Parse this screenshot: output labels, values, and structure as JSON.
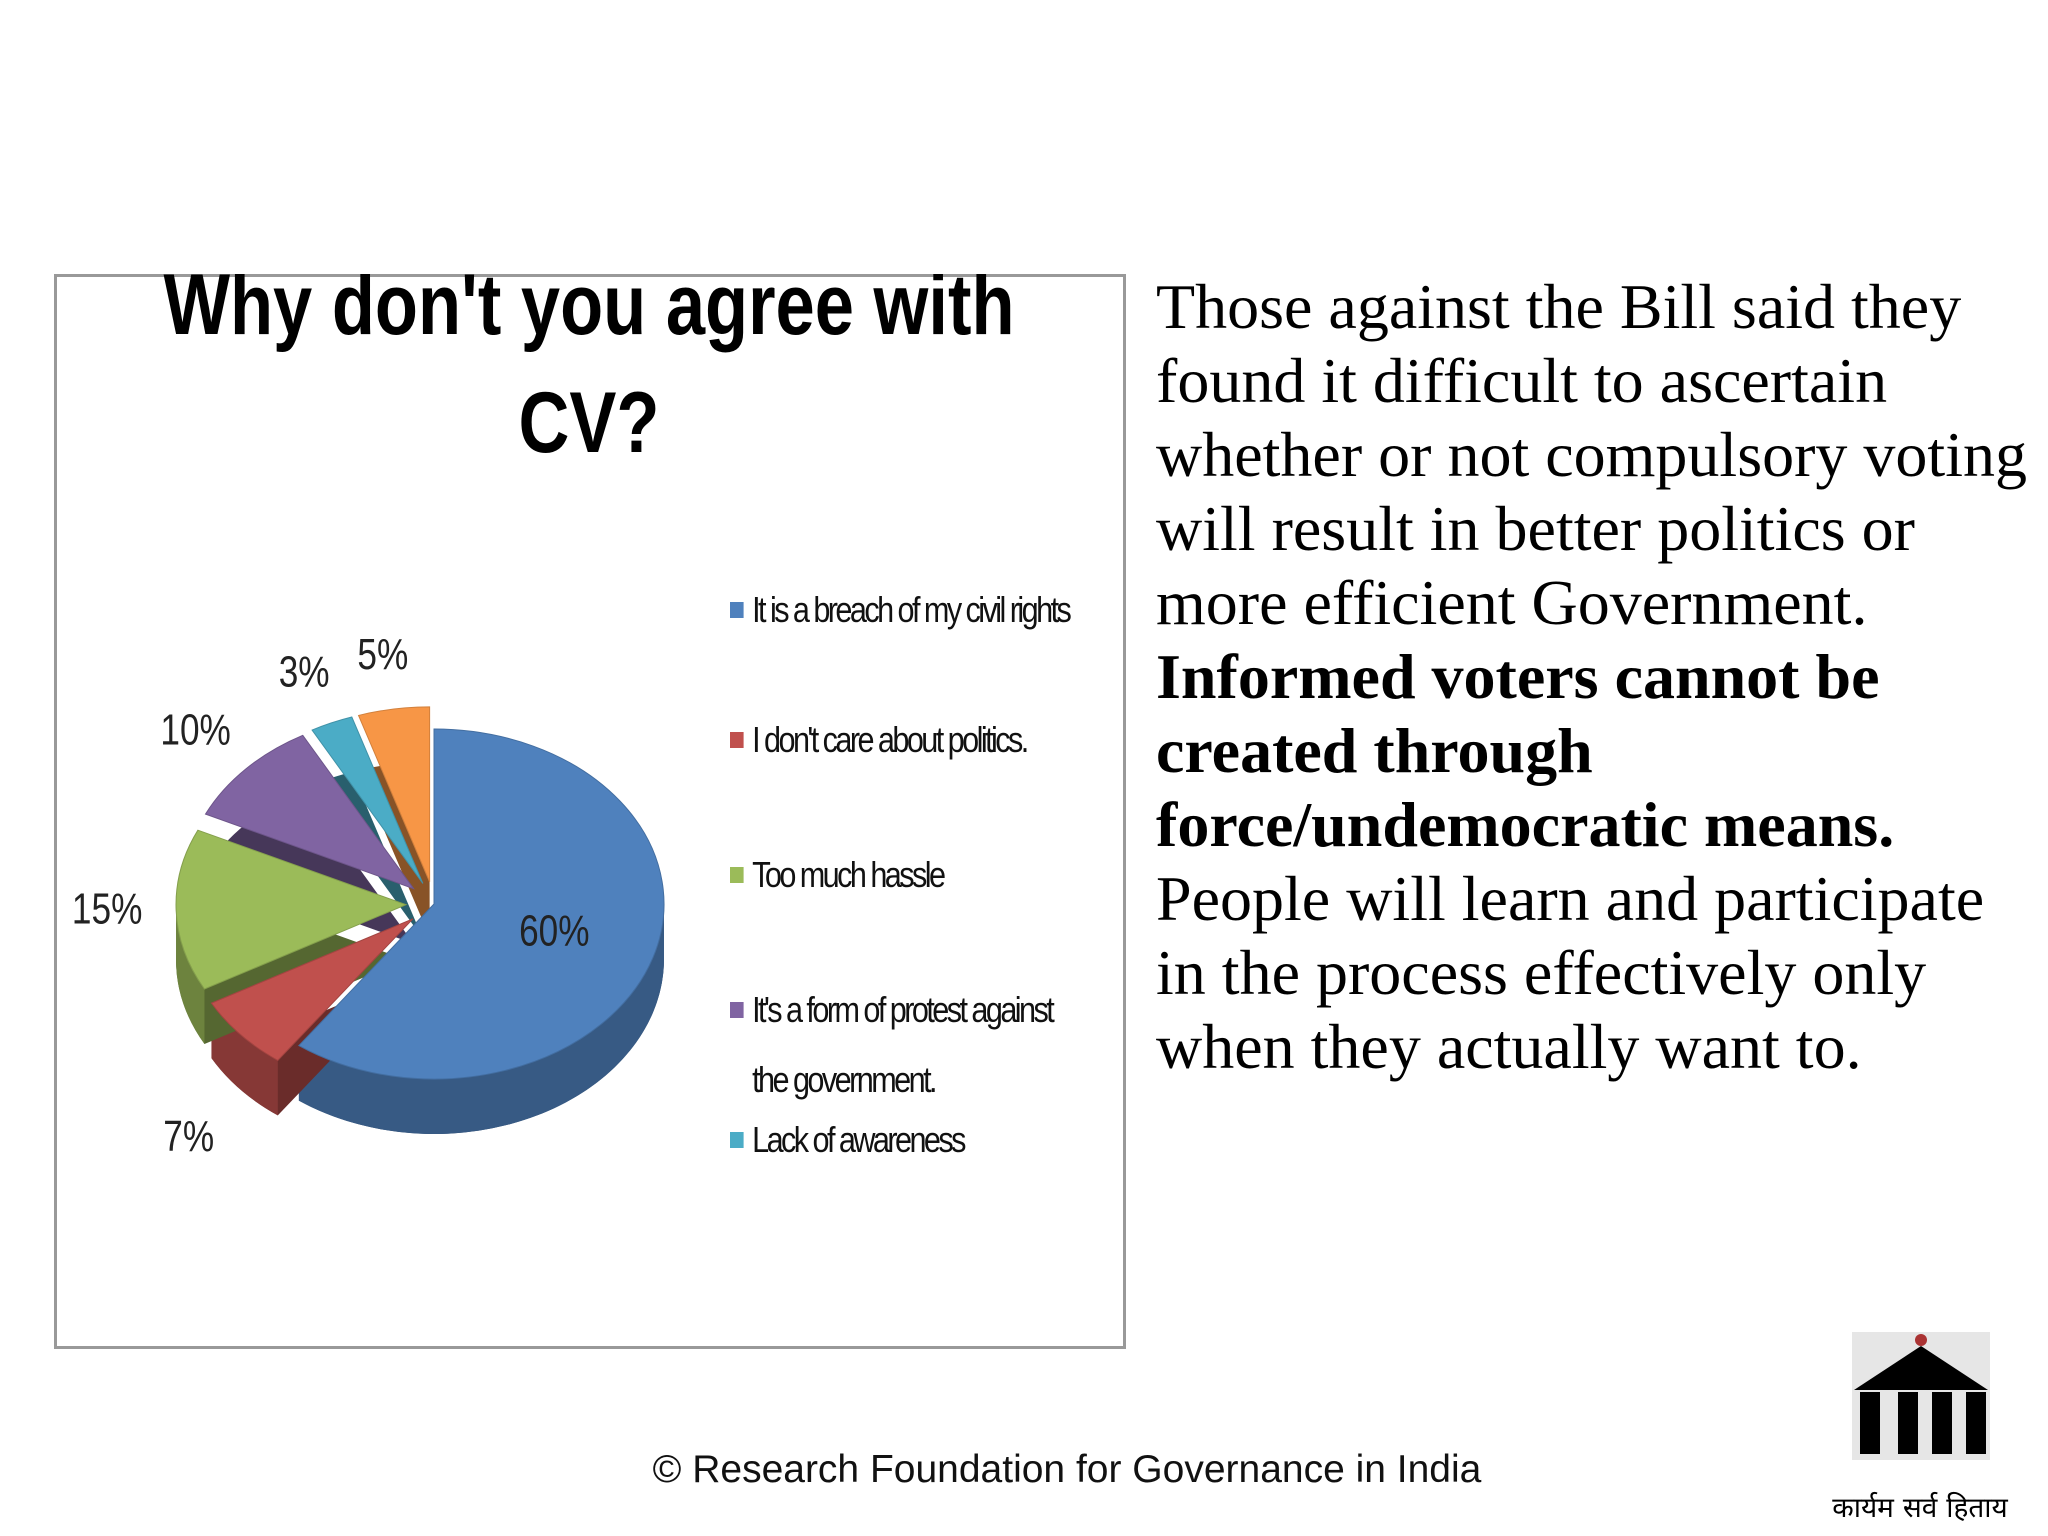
{
  "chart_data": {
    "type": "pie",
    "title": "Why don't you agree with CV?",
    "categories": [
      "It is a breach of my civil rights",
      "I don't care about politics.",
      "Too much hassle",
      "It's a form of protest against the government.",
      "Lack of awareness",
      null
    ],
    "values": [
      60,
      7,
      15,
      10,
      3,
      5
    ],
    "value_labels": [
      "60%",
      "7%",
      "15%",
      "10%",
      "3%",
      "5%"
    ],
    "colors": [
      "#4f81bd",
      "#c0504d",
      "#9bbb59",
      "#8064a2",
      "#4bacc6",
      "#f79646"
    ]
  },
  "text": {
    "paragraphs": [
      {
        "text": "Those against the Bill said they found it difficult to ascertain whether or not compulsory voting will result in better politics or more efficient Government.",
        "bold": false
      },
      {
        "text": "Informed voters cannot be created through force/undemocratic means.",
        "bold": true
      },
      {
        "text": "People will learn and participate in the process effectively only when they actually want to.",
        "bold": false
      }
    ]
  },
  "footer": "© Research Foundation for Governance in India",
  "logo_caption": "कार्यम सर्व हिताय"
}
